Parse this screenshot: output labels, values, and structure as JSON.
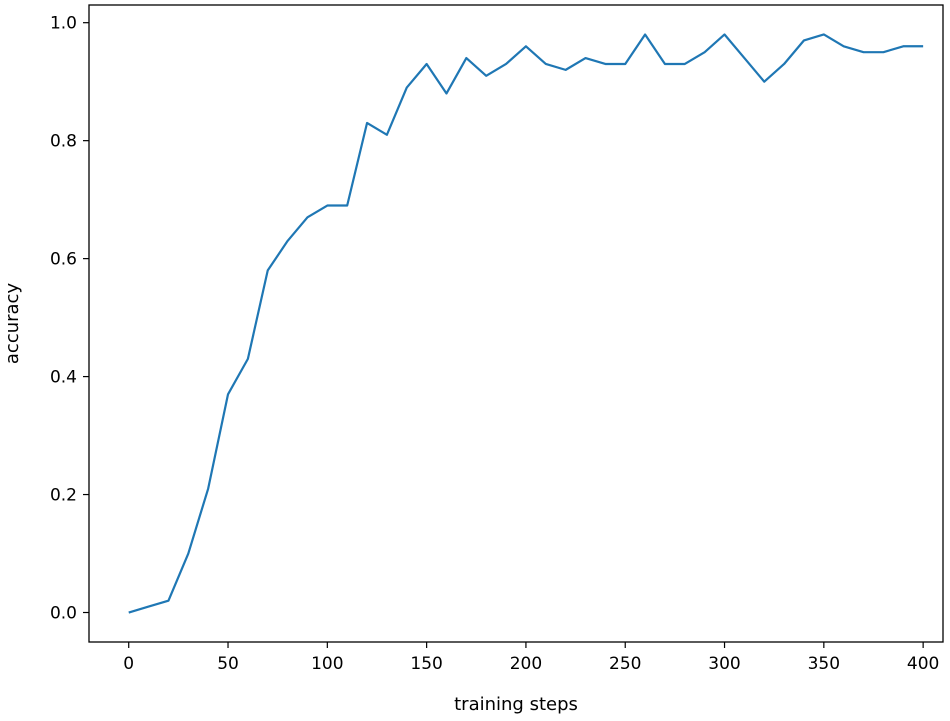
{
  "chart_data": {
    "type": "line",
    "title": "",
    "xlabel": "training steps",
    "ylabel": "accuracy",
    "xlim": [
      -20,
      410
    ],
    "ylim": [
      -0.05,
      1.03
    ],
    "x_ticks": [
      0,
      50,
      100,
      150,
      200,
      250,
      300,
      350,
      400
    ],
    "x_tick_labels": [
      "0",
      "50",
      "100",
      "150",
      "200",
      "250",
      "300",
      "350",
      "400"
    ],
    "y_ticks": [
      0.0,
      0.2,
      0.4,
      0.6,
      0.8,
      1.0
    ],
    "y_tick_labels": [
      "0.0",
      "0.2",
      "0.4",
      "0.6",
      "0.8",
      "1.0"
    ],
    "grid": false,
    "legend": "none",
    "series": [
      {
        "color": "#1f77b4",
        "x": [
          0,
          10,
          20,
          30,
          40,
          50,
          60,
          70,
          80,
          90,
          100,
          110,
          120,
          130,
          140,
          150,
          160,
          170,
          180,
          190,
          200,
          210,
          220,
          230,
          240,
          250,
          260,
          270,
          280,
          290,
          300,
          310,
          320,
          330,
          340,
          350,
          360,
          370,
          380,
          390,
          400
        ],
        "y": [
          0.0,
          0.01,
          0.02,
          0.1,
          0.21,
          0.37,
          0.43,
          0.58,
          0.63,
          0.67,
          0.69,
          0.69,
          0.83,
          0.81,
          0.89,
          0.93,
          0.88,
          0.94,
          0.91,
          0.93,
          0.96,
          0.93,
          0.92,
          0.94,
          0.93,
          0.93,
          0.98,
          0.93,
          0.93,
          0.95,
          0.98,
          0.94,
          0.9,
          0.93,
          0.97,
          0.98,
          0.96,
          0.95,
          0.95,
          0.96,
          0.96
        ]
      }
    ]
  }
}
